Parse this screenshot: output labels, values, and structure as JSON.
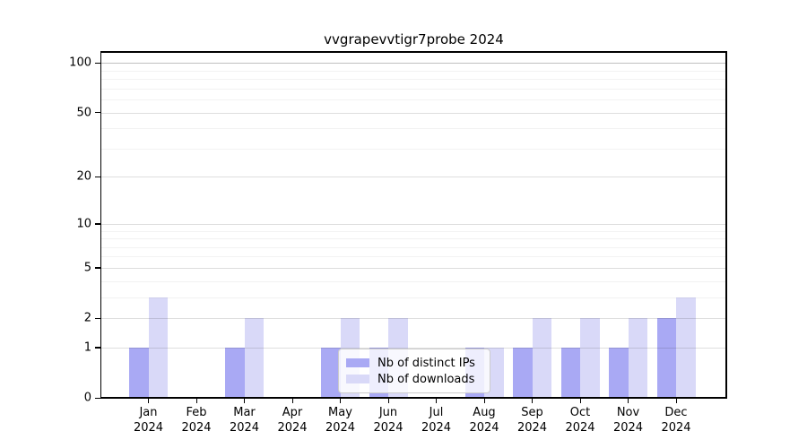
{
  "title": "vvgrapevvtigr7probe 2024",
  "chart_data": {
    "type": "bar",
    "title": "vvgrapevvtigr7probe 2024",
    "categories": [
      "Jan",
      "Feb",
      "Mar",
      "Apr",
      "May",
      "Jun",
      "Jul",
      "Aug",
      "Sep",
      "Oct",
      "Nov",
      "Dec"
    ],
    "year_label": "2024",
    "series": [
      {
        "name": "Nb of distinct IPs",
        "color": "#a9a9f4",
        "values": [
          1,
          0,
          1,
          0,
          1,
          1,
          0,
          1,
          1,
          1,
          1,
          2
        ]
      },
      {
        "name": "Nb of downloads",
        "color": "#d9d9f8",
        "values": [
          3,
          0,
          2,
          0,
          2,
          2,
          0,
          1,
          2,
          2,
          2,
          3
        ]
      }
    ],
    "xlabel": "",
    "ylabel": "",
    "yscale": "log1p",
    "ylim": [
      0,
      116
    ],
    "y_major_ticks": [
      0,
      1,
      2,
      5,
      10,
      20,
      50,
      100
    ],
    "y_minor_ticks": [
      3,
      4,
      6,
      7,
      8,
      9,
      30,
      40,
      60,
      70,
      80,
      90
    ],
    "grid": true,
    "legend_position": "lower center",
    "background_color": "#ffffff"
  }
}
